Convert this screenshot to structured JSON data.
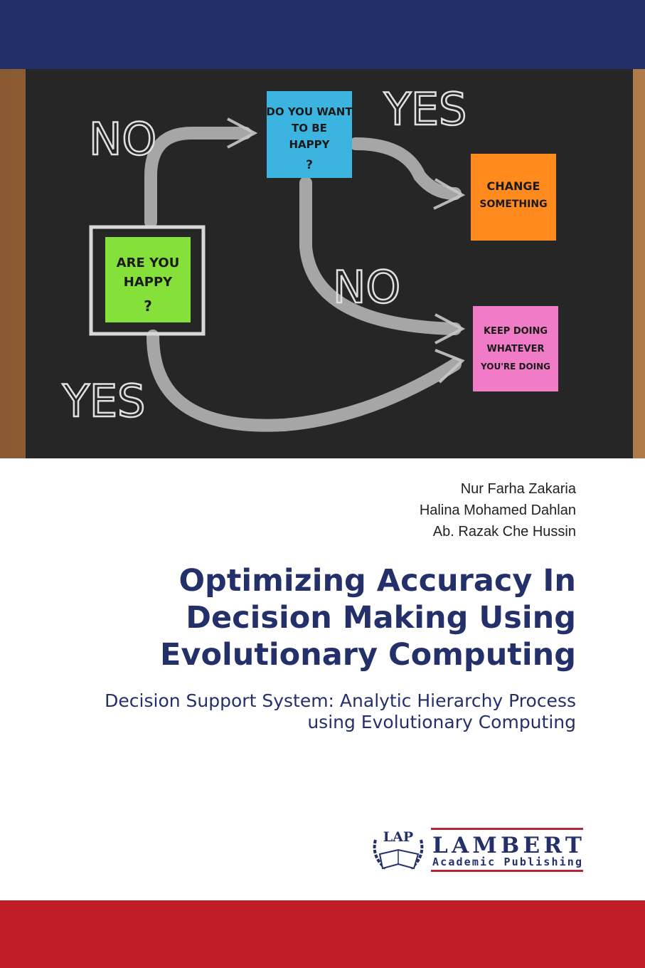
{
  "cover_image": {
    "notes": [
      {
        "lines": [
          "DO YOU WANT",
          "TO BE",
          "HAPPY",
          "?"
        ],
        "color": "#3cb4e0"
      },
      {
        "lines": [
          "CHANGE",
          "SOMETHING"
        ],
        "color": "#ff8a1e"
      },
      {
        "lines": [
          "ARE YOU",
          "HAPPY",
          "?"
        ],
        "color": "#86e03a"
      },
      {
        "lines": [
          "KEEP DOING",
          "WHATEVER",
          "YOU'RE DOING"
        ],
        "color": "#f07cc8"
      }
    ],
    "chalk_words": [
      "NO",
      "YES",
      "NO",
      "YES"
    ]
  },
  "authors": [
    "Nur Farha Zakaria",
    "Halina Mohamed Dahlan",
    "Ab. Razak Che Hussin"
  ],
  "title_lines": [
    "Optimizing Accuracy In",
    "Decision Making Using",
    "Evolutionary Computing"
  ],
  "subtitle_lines": [
    "Decision Support System: Analytic Hierarchy Process",
    "using Evolutionary Computing"
  ],
  "publisher": {
    "emblem": "LAP",
    "name": "LAMBERT",
    "tagline": "Academic Publishing"
  },
  "colors": {
    "navy": "#22306a",
    "red": "#c21d27",
    "logo_red": "#b5283a"
  }
}
